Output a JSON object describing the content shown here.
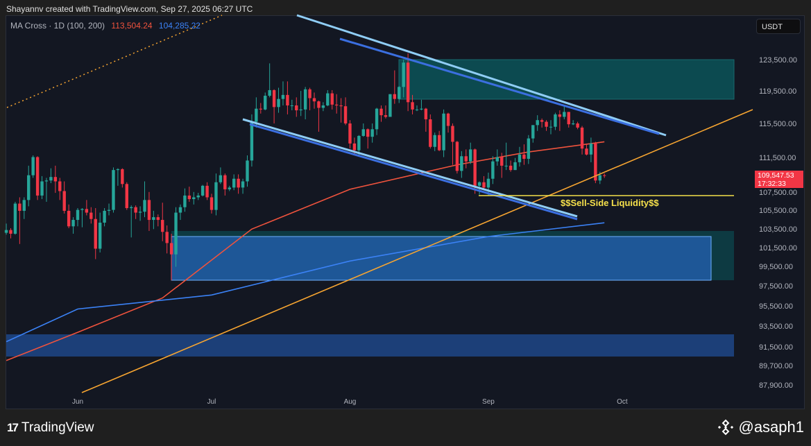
{
  "header": {
    "attribution": "Shayannv created with TradingView.com, Sep 27, 2025 06:27 UTC"
  },
  "legend": {
    "indicator": "MA Cross · 1D (100, 200)",
    "ma100_value": "113,504.24",
    "ma200_value": "104,285.22"
  },
  "currency_button": "USDT",
  "price_tag": {
    "price": "109,547.53",
    "countdown": "17:32:33"
  },
  "annotation": {
    "sell_side_liquidity": "$$Sell-Side Liquidity$$"
  },
  "footer": {
    "brand": "TradingView",
    "watermark": "@asaph1"
  },
  "colors": {
    "up": "#26a69a",
    "down": "#f23645",
    "ma100": "#f0533d",
    "ma200": "#3b82f6",
    "trendline": "#f7a531",
    "liquidity": "#f5e04b"
  },
  "chart_data": {
    "type": "candlestick",
    "scale": "log",
    "ylim": [
      87900,
      127000
    ],
    "y_ticks": [
      "123,500.00",
      "119,500.00",
      "115,500.00",
      "111,500.00",
      "107,500.00",
      "105,500.00",
      "103,500.00",
      "101,500.00",
      "99,500.00",
      "97,500.00",
      "95,500.00",
      "93,500.00",
      "91,500.00",
      "89,700.00",
      "87,900.00"
    ],
    "x_ticks": [
      "Jun",
      "Jul",
      "Aug",
      "Sep",
      "Oct"
    ],
    "year": 2025,
    "candles": [
      [
        "05-16",
        103200,
        104200,
        103000,
        103500
      ],
      [
        "05-17",
        103500,
        103700,
        102600,
        103100
      ],
      [
        "05-18",
        103100,
        106600,
        103000,
        106400
      ],
      [
        "05-19",
        106400,
        107100,
        102000,
        105600
      ],
      [
        "05-20",
        105600,
        107100,
        104700,
        106800
      ],
      [
        "05-21",
        106800,
        110700,
        106100,
        109600
      ],
      [
        "05-22",
        109600,
        111900,
        109300,
        111700
      ],
      [
        "05-23",
        111700,
        111800,
        106800,
        107300
      ],
      [
        "05-24",
        107300,
        109500,
        106900,
        108900
      ],
      [
        "05-25",
        108900,
        109300,
        106600,
        109000
      ],
      [
        "05-26",
        109000,
        110400,
        108700,
        109400
      ],
      [
        "05-27",
        109400,
        110700,
        107600,
        108900
      ],
      [
        "05-28",
        108900,
        109300,
        106800,
        107800
      ],
      [
        "05-29",
        107800,
        108900,
        105300,
        105600
      ],
      [
        "05-30",
        105600,
        106300,
        103700,
        103900
      ],
      [
        "05-31",
        103900,
        104900,
        103100,
        104600
      ],
      [
        "06-01",
        104600,
        105900,
        103900,
        105700
      ],
      [
        "06-02",
        105700,
        105900,
        103800,
        105800
      ],
      [
        "06-03",
        105800,
        106800,
        105100,
        105400
      ],
      [
        "06-04",
        105400,
        106000,
        104200,
        104700
      ],
      [
        "06-05",
        104700,
        105900,
        100400,
        101500
      ],
      [
        "06-06",
        101500,
        105400,
        101100,
        104300
      ],
      [
        "06-07",
        104300,
        105900,
        103900,
        105600
      ],
      [
        "06-08",
        105600,
        106400,
        105100,
        105700
      ],
      [
        "06-09",
        105700,
        110500,
        105400,
        110200
      ],
      [
        "06-10",
        110200,
        110400,
        108400,
        110300
      ],
      [
        "06-11",
        110300,
        110400,
        108200,
        108600
      ],
      [
        "06-12",
        108600,
        108800,
        105700,
        105900
      ],
      [
        "06-13",
        105900,
        106200,
        102700,
        106000
      ],
      [
        "06-14",
        106000,
        106200,
        104700,
        105400
      ],
      [
        "06-15",
        105400,
        106100,
        104500,
        105500
      ],
      [
        "06-16",
        105500,
        108900,
        104900,
        106800
      ],
      [
        "06-17",
        106800,
        107700,
        103400,
        104600
      ],
      [
        "06-18",
        104600,
        105600,
        103600,
        104900
      ],
      [
        "06-19",
        104900,
        105200,
        103900,
        104600
      ],
      [
        "06-20",
        104600,
        106500,
        102300,
        103300
      ],
      [
        "06-21",
        103300,
        104000,
        101000,
        102100
      ],
      [
        "06-22",
        102100,
        103100,
        98200,
        100900
      ],
      [
        "06-23",
        100900,
        106000,
        99600,
        105400
      ],
      [
        "06-24",
        105400,
        106300,
        104600,
        106000
      ],
      [
        "06-25",
        106000,
        108100,
        105500,
        107300
      ],
      [
        "06-26",
        107300,
        108300,
        106600,
        106900
      ],
      [
        "06-27",
        106900,
        107700,
        106300,
        107100
      ],
      [
        "06-28",
        107100,
        107600,
        106800,
        107300
      ],
      [
        "06-29",
        107300,
        108500,
        107200,
        108400
      ],
      [
        "06-30",
        108400,
        108800,
        106800,
        107100
      ],
      [
        "07-01",
        107100,
        107500,
        105300,
        105700
      ],
      [
        "07-02",
        105700,
        109800,
        105100,
        108800
      ],
      [
        "07-03",
        108800,
        110500,
        108600,
        109600
      ],
      [
        "07-04",
        109600,
        109800,
        107300,
        108000
      ],
      [
        "07-05",
        108000,
        108400,
        107800,
        108200
      ],
      [
        "07-06",
        108200,
        109700,
        107900,
        109200
      ],
      [
        "07-07",
        109200,
        109700,
        107500,
        108200
      ],
      [
        "07-08",
        108200,
        109200,
        107500,
        108900
      ],
      [
        "07-09",
        108900,
        111900,
        108300,
        111300
      ],
      [
        "07-10",
        111300,
        116800,
        110600,
        115900
      ],
      [
        "07-11",
        115900,
        118900,
        115200,
        117500
      ],
      [
        "07-12",
        117500,
        118200,
        116900,
        117400
      ],
      [
        "07-13",
        117400,
        119500,
        117300,
        119100
      ],
      [
        "07-14",
        119100,
        123200,
        118900,
        119800
      ],
      [
        "07-15",
        119800,
        119900,
        115700,
        117700
      ],
      [
        "07-16",
        117700,
        120100,
        117000,
        118700
      ],
      [
        "07-17",
        118700,
        120900,
        117900,
        119200
      ],
      [
        "07-18",
        119200,
        120900,
        116800,
        117900
      ],
      [
        "07-19",
        117900,
        118600,
        117300,
        117900
      ],
      [
        "07-20",
        117900,
        118900,
        116500,
        117300
      ],
      [
        "07-21",
        117300,
        119700,
        116600,
        117400
      ],
      [
        "07-22",
        117400,
        120200,
        116200,
        119900
      ],
      [
        "07-23",
        119900,
        120100,
        117300,
        118800
      ],
      [
        "07-24",
        118800,
        119500,
        117500,
        118400
      ],
      [
        "07-25",
        118400,
        118500,
        114700,
        117600
      ],
      [
        "07-26",
        117600,
        118300,
        117200,
        117900
      ],
      [
        "07-27",
        117900,
        119800,
        117800,
        119400
      ],
      [
        "07-28",
        119400,
        119800,
        117400,
        118000
      ],
      [
        "07-29",
        118000,
        119300,
        116900,
        117900
      ],
      [
        "07-30",
        117900,
        118800,
        115800,
        117800
      ],
      [
        "07-31",
        117800,
        118900,
        115500,
        115700
      ],
      [
        "08-01",
        115700,
        116100,
        112700,
        113300
      ],
      [
        "08-02",
        113300,
        114000,
        112000,
        112500
      ],
      [
        "08-03",
        112500,
        114300,
        111900,
        114200
      ],
      [
        "08-04",
        114200,
        115700,
        114100,
        115000
      ],
      [
        "08-05",
        115000,
        115100,
        112700,
        114100
      ],
      [
        "08-06",
        114100,
        115700,
        113400,
        115000
      ],
      [
        "08-07",
        115000,
        117600,
        114300,
        117500
      ],
      [
        "08-08",
        117500,
        117900,
        115900,
        116700
      ],
      [
        "08-09",
        116700,
        117900,
        116300,
        116500
      ],
      [
        "08-10",
        116500,
        119300,
        116500,
        119300
      ],
      [
        "08-11",
        119300,
        122300,
        118100,
        118700
      ],
      [
        "08-12",
        118700,
        120300,
        118200,
        120200
      ],
      [
        "08-13",
        120200,
        123700,
        118900,
        123300
      ],
      [
        "08-14",
        123300,
        124500,
        117200,
        118300
      ],
      [
        "08-15",
        118300,
        119200,
        116800,
        117400
      ],
      [
        "08-16",
        117400,
        117900,
        117200,
        117400
      ],
      [
        "08-17",
        117400,
        118600,
        117300,
        117500
      ],
      [
        "08-18",
        117500,
        117600,
        114700,
        116200
      ],
      [
        "08-19",
        116200,
        116800,
        112700,
        112900
      ],
      [
        "08-20",
        112900,
        114600,
        112400,
        114300
      ],
      [
        "08-21",
        114300,
        114800,
        112400,
        112500
      ],
      [
        "08-22",
        112500,
        117400,
        111700,
        116900
      ],
      [
        "08-23",
        116900,
        117000,
        114600,
        115400
      ],
      [
        "08-24",
        115400,
        115700,
        110800,
        113500
      ],
      [
        "08-25",
        113500,
        113600,
        109800,
        110100
      ],
      [
        "08-26",
        110100,
        112400,
        109300,
        111800
      ],
      [
        "08-27",
        111800,
        112600,
        110400,
        111200
      ],
      [
        "08-28",
        111200,
        113400,
        110900,
        112600
      ],
      [
        "08-29",
        112600,
        112700,
        107500,
        108400
      ],
      [
        "08-30",
        108400,
        108900,
        107400,
        108800
      ],
      [
        "08-31",
        108800,
        109500,
        108100,
        108200
      ],
      [
        "09-01",
        108200,
        109900,
        107300,
        109200
      ],
      [
        "09-02",
        109200,
        111800,
        108600,
        111200
      ],
      [
        "09-03",
        111200,
        112600,
        110700,
        111700
      ],
      [
        "09-04",
        111700,
        112200,
        109300,
        110700
      ],
      [
        "09-05",
        110700,
        113400,
        110200,
        110700
      ],
      [
        "09-06",
        110700,
        111300,
        110000,
        110200
      ],
      [
        "09-07",
        110200,
        111600,
        110200,
        111100
      ],
      [
        "09-08",
        111100,
        112900,
        110600,
        112000
      ],
      [
        "09-09",
        112000,
        113200,
        110800,
        111500
      ],
      [
        "09-10",
        111500,
        114300,
        110900,
        113900
      ],
      [
        "09-11",
        113900,
        115500,
        113400,
        115500
      ],
      [
        "09-12",
        115500,
        116700,
        114800,
        116100
      ],
      [
        "09-13",
        116100,
        116300,
        115200,
        115900
      ],
      [
        "09-14",
        115900,
        116100,
        114800,
        115300
      ],
      [
        "09-15",
        115300,
        116100,
        114400,
        115300
      ],
      [
        "09-16",
        115300,
        117000,
        114900,
        116800
      ],
      [
        "09-17",
        116800,
        117300,
        114800,
        116500
      ],
      [
        "09-18",
        116500,
        117900,
        116200,
        117100
      ],
      [
        "09-19",
        117100,
        117100,
        115200,
        115600
      ],
      [
        "09-20",
        115600,
        116100,
        115500,
        115700
      ],
      [
        "09-21",
        115700,
        115900,
        115000,
        115200
      ],
      [
        "09-22",
        115200,
        115400,
        112000,
        112700
      ],
      [
        "09-23",
        112700,
        113300,
        111900,
        112000
      ],
      [
        "09-24",
        112000,
        114000,
        111100,
        113300
      ],
      [
        "09-25",
        113300,
        113500,
        108700,
        109000
      ],
      [
        "09-26",
        109000,
        110000,
        108600,
        109600
      ],
      [
        "09-27",
        109600,
        109800,
        109300,
        109547
      ]
    ],
    "series": [
      {
        "name": "MA 100",
        "points": [
          [
            "05-16",
            90300
          ],
          [
            "06-01",
            93000
          ],
          [
            "06-20",
            96400
          ],
          [
            "07-10",
            103600
          ],
          [
            "08-01",
            108000
          ],
          [
            "08-25",
            110800
          ],
          [
            "09-10",
            112300
          ],
          [
            "09-27",
            113504
          ]
        ]
      },
      {
        "name": "MA 200",
        "points": [
          [
            "05-16",
            92100
          ],
          [
            "06-01",
            95300
          ],
          [
            "07-01",
            96700
          ],
          [
            "08-01",
            100200
          ],
          [
            "09-01",
            102800
          ],
          [
            "09-27",
            104285
          ]
        ]
      }
    ]
  }
}
